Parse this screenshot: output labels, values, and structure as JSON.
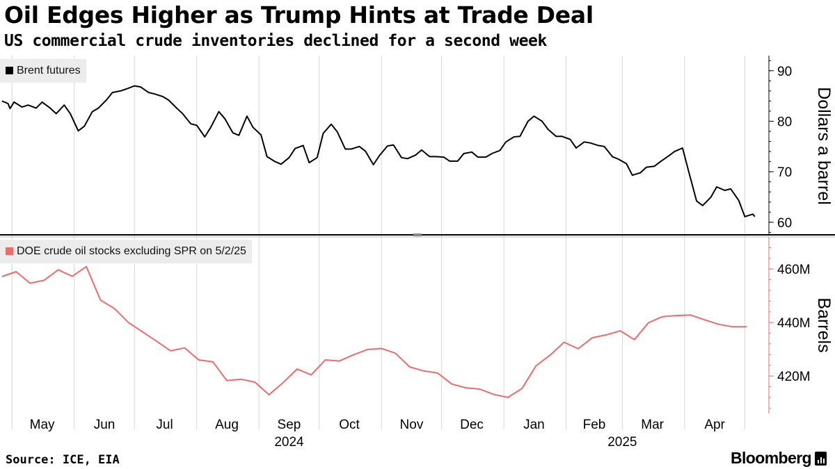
{
  "header": {
    "title": "Oil Edges Higher as Trump Hints at Trade Deal",
    "subtitle": "US commercial crude inventories declined for a second week"
  },
  "footer": {
    "source": "Source: ICE, EIA",
    "brand": "Bloomberg"
  },
  "colors": {
    "brent": "#000000",
    "stocks": "#f06a6a",
    "grid": "#d6d6d6",
    "legend_bg": "#ececec"
  },
  "chart_data": [
    {
      "type": "line",
      "title": "Oil Edges Higher as Trump Hints at Trade Deal",
      "subtitle": "US commercial crude inventories declined for a second week",
      "ylabel": "Dollars a barrel",
      "ylim": [
        57.5,
        93
      ],
      "yticks": [
        60,
        70,
        80,
        90
      ],
      "legend": "top-left",
      "grid": "vertical",
      "series": [
        {
          "name": "Brent futures",
          "x": [
            "2024-04-26",
            "2024-04-29",
            "2024-04-30",
            "2024-05-02",
            "2024-05-06",
            "2024-05-09",
            "2024-05-13",
            "2024-05-16",
            "2024-05-20",
            "2024-05-23",
            "2024-05-27",
            "2024-05-30",
            "2024-06-03",
            "2024-06-06",
            "2024-06-10",
            "2024-06-13",
            "2024-06-17",
            "2024-06-20",
            "2024-06-24",
            "2024-06-27",
            "2024-07-01",
            "2024-07-04",
            "2024-07-08",
            "2024-07-11",
            "2024-07-15",
            "2024-07-18",
            "2024-07-22",
            "2024-07-25",
            "2024-07-29",
            "2024-08-01",
            "2024-08-05",
            "2024-08-08",
            "2024-08-12",
            "2024-08-15",
            "2024-08-19",
            "2024-08-22",
            "2024-08-26",
            "2024-08-29",
            "2024-09-02",
            "2024-09-05",
            "2024-09-09",
            "2024-09-12",
            "2024-09-16",
            "2024-09-19",
            "2024-09-23",
            "2024-09-26",
            "2024-09-30",
            "2024-10-03",
            "2024-10-07",
            "2024-10-10",
            "2024-10-14",
            "2024-10-17",
            "2024-10-21",
            "2024-10-24",
            "2024-10-28",
            "2024-10-31",
            "2024-11-04",
            "2024-11-07",
            "2024-11-11",
            "2024-11-14",
            "2024-11-18",
            "2024-11-21",
            "2024-11-25",
            "2024-11-28",
            "2024-12-02",
            "2024-12-05",
            "2024-12-09",
            "2024-12-12",
            "2024-12-16",
            "2024-12-19",
            "2024-12-23",
            "2024-12-26",
            "2024-12-30",
            "2025-01-02",
            "2025-01-06",
            "2025-01-09",
            "2025-01-13",
            "2025-01-16",
            "2025-01-20",
            "2025-01-23",
            "2025-01-27",
            "2025-01-30",
            "2025-02-03",
            "2025-02-06",
            "2025-02-10",
            "2025-02-13",
            "2025-02-17",
            "2025-02-20",
            "2025-02-24",
            "2025-02-27",
            "2025-03-03",
            "2025-03-06",
            "2025-03-10",
            "2025-03-13",
            "2025-03-17",
            "2025-03-20",
            "2025-03-24",
            "2025-03-27",
            "2025-03-31",
            "2025-04-03",
            "2025-04-07",
            "2025-04-10",
            "2025-04-14",
            "2025-04-17",
            "2025-04-21",
            "2025-04-24",
            "2025-04-28",
            "2025-05-01",
            "2025-05-05",
            "2025-05-06"
          ],
          "values": [
            84,
            83.5,
            82.5,
            83.8,
            82.8,
            83.2,
            82.6,
            83.8,
            82.6,
            81.5,
            83.2,
            81.5,
            78.1,
            79.0,
            81.9,
            82.6,
            84.2,
            85.7,
            86.0,
            86.4,
            87.0,
            86.8,
            85.7,
            85.4,
            84.9,
            84.2,
            82.6,
            81.5,
            79.5,
            79.2,
            76.9,
            78.8,
            81.9,
            80.5,
            77.7,
            77.2,
            81.0,
            78.8,
            77.3,
            73.0,
            72.0,
            71.5,
            72.8,
            74.6,
            75.2,
            71.8,
            72.8,
            77.6,
            79.4,
            77.9,
            74.5,
            74.5,
            75.0,
            74.1,
            71.4,
            73.2,
            75.1,
            75.3,
            72.8,
            72.6,
            73.3,
            74.3,
            73.0,
            73.0,
            72.9,
            72.1,
            72.1,
            73.6,
            73.9,
            72.9,
            72.9,
            73.6,
            74.2,
            75.9,
            76.9,
            77.0,
            80.0,
            81.0,
            80.0,
            78.4,
            77.0,
            77.0,
            76.4,
            74.7,
            75.9,
            75.7,
            75.2,
            75.0,
            73.0,
            72.5,
            71.6,
            69.3,
            69.8,
            70.9,
            71.1,
            72.0,
            73.1,
            74.0,
            74.7,
            70.1,
            64.2,
            63.3,
            64.9,
            67.0,
            66.3,
            66.6,
            64.3,
            61.1,
            61.6,
            61.1
          ]
        }
      ]
    },
    {
      "type": "line",
      "ylabel": "Barrels",
      "ylim": [
        406,
        472
      ],
      "yticks": [
        420,
        440,
        460
      ],
      "ytick_labels": [
        "420M",
        "440M",
        "460M"
      ],
      "legend": "top-left",
      "grid": "vertical",
      "series": [
        {
          "name": "DOE crude oil stocks excluding SPR on 5/2/25",
          "x": [
            "2024-04-26",
            "2024-05-03",
            "2024-05-10",
            "2024-05-17",
            "2024-05-24",
            "2024-05-31",
            "2024-06-07",
            "2024-06-14",
            "2024-06-21",
            "2024-06-28",
            "2024-07-05",
            "2024-07-12",
            "2024-07-19",
            "2024-07-26",
            "2024-08-02",
            "2024-08-09",
            "2024-08-16",
            "2024-08-23",
            "2024-08-30",
            "2024-09-06",
            "2024-09-13",
            "2024-09-20",
            "2024-09-27",
            "2024-10-04",
            "2024-10-11",
            "2024-10-18",
            "2024-10-25",
            "2024-11-01",
            "2024-11-08",
            "2024-11-15",
            "2024-11-22",
            "2024-11-29",
            "2024-12-06",
            "2024-12-13",
            "2024-12-20",
            "2024-12-27",
            "2025-01-03",
            "2025-01-10",
            "2025-01-17",
            "2025-01-24",
            "2025-01-31",
            "2025-02-07",
            "2025-02-14",
            "2025-02-21",
            "2025-02-28",
            "2025-03-07",
            "2025-03-14",
            "2025-03-21",
            "2025-03-28",
            "2025-04-04",
            "2025-04-11",
            "2025-04-18",
            "2025-04-25",
            "2025-05-02"
          ],
          "values": [
            457.2,
            459.0,
            454.7,
            455.8,
            459.7,
            457.3,
            460.9,
            448.4,
            445.2,
            440.0,
            436.5,
            433.0,
            429.4,
            430.5,
            426.0,
            425.3,
            418.3,
            418.8,
            417.7,
            413.0,
            417.5,
            422.6,
            420.4,
            426.0,
            425.6,
            427.9,
            429.9,
            430.3,
            428.5,
            423.4,
            421.9,
            421.1,
            417.0,
            415.6,
            415.1,
            413.1,
            412.0,
            415.3,
            423.8,
            427.8,
            432.6,
            430.2,
            434.3,
            435.4,
            436.9,
            433.6,
            439.9,
            442.2,
            442.6,
            442.8,
            441.0,
            439.3,
            438.4,
            438.4
          ]
        }
      ]
    },
    {
      "type": "axis",
      "x_months": [
        "May",
        "Jun",
        "Jul",
        "Aug",
        "Sep",
        "Oct",
        "Nov",
        "Dec",
        "Jan",
        "Feb",
        "Mar",
        "Apr"
      ],
      "x_years": [
        "2024",
        "2025"
      ]
    }
  ]
}
